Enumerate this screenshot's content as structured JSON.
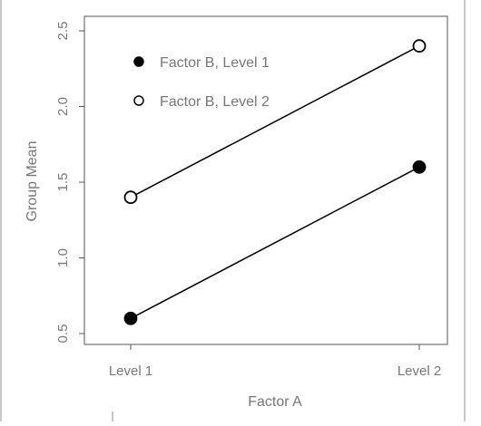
{
  "chart_data": {
    "type": "line",
    "title": "",
    "xlabel": "Factor A",
    "ylabel": "Group Mean",
    "categories": [
      "Level 1",
      "Level 2"
    ],
    "ylim": [
      0.5,
      2.5
    ],
    "yticks": [
      "0.5",
      "1.0",
      "1.5",
      "2.0",
      "2.5"
    ],
    "grid": false,
    "legend_position": "top-left",
    "series": [
      {
        "name": "Factor B, Level 1",
        "values": [
          0.6,
          1.6
        ],
        "marker": "filled-circle",
        "color": "#000000"
      },
      {
        "name": "Factor B, Level 2",
        "values": [
          1.4,
          2.4
        ],
        "marker": "open-circle",
        "color": "#000000"
      }
    ]
  }
}
